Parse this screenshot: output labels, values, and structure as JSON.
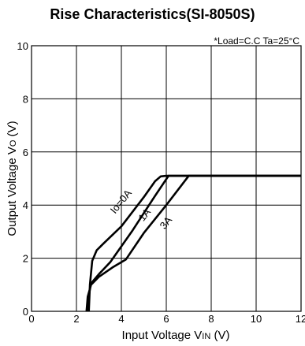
{
  "chart_data": {
    "type": "line",
    "title": "Rise Characteristics(SI-8050S)",
    "note": "*Load=C.C Ta=25°C",
    "xlabel": "Input Voltage VIN (V)",
    "ylabel": "Output Voltage VO (V)",
    "xlim": [
      0,
      12
    ],
    "ylim": [
      0,
      10
    ],
    "xticks": [
      0,
      2,
      4,
      6,
      8,
      10,
      12
    ],
    "yticks": [
      0,
      2,
      4,
      6,
      8,
      10
    ],
    "grid": true,
    "series": [
      {
        "name": "Io=0A",
        "points": [
          [
            2.55,
            0
          ],
          [
            2.6,
            1.0
          ],
          [
            2.7,
            1.9
          ],
          [
            2.9,
            2.3
          ],
          [
            3.2,
            2.55
          ],
          [
            4.0,
            3.2
          ],
          [
            5.0,
            4.3
          ],
          [
            5.5,
            4.9
          ],
          [
            5.75,
            5.08
          ],
          [
            6.0,
            5.1
          ],
          [
            12,
            5.1
          ]
        ]
      },
      {
        "name": "1A",
        "points": [
          [
            2.5,
            0
          ],
          [
            2.55,
            0.6
          ],
          [
            2.65,
            1.05
          ],
          [
            3.0,
            1.4
          ],
          [
            3.5,
            1.85
          ],
          [
            4.5,
            3.05
          ],
          [
            5.5,
            4.35
          ],
          [
            6.1,
            5.1
          ],
          [
            12,
            5.1
          ]
        ]
      },
      {
        "name": "3A",
        "points": [
          [
            2.45,
            0
          ],
          [
            2.5,
            0.55
          ],
          [
            2.65,
            1.0
          ],
          [
            3.0,
            1.3
          ],
          [
            3.6,
            1.65
          ],
          [
            4.2,
            1.95
          ],
          [
            5.0,
            2.95
          ],
          [
            6.0,
            4.0
          ],
          [
            7.0,
            5.1
          ],
          [
            12,
            5.1
          ]
        ]
      }
    ],
    "series_labels": [
      {
        "series": "Io=0A",
        "text": "Io=0A",
        "at": [
          4.1,
          4.05
        ]
      },
      {
        "series": "1A",
        "text": "1A",
        "at": [
          5.15,
          3.55
        ]
      },
      {
        "series": "3A",
        "text": "3A",
        "at": [
          6.1,
          3.25
        ]
      }
    ]
  }
}
